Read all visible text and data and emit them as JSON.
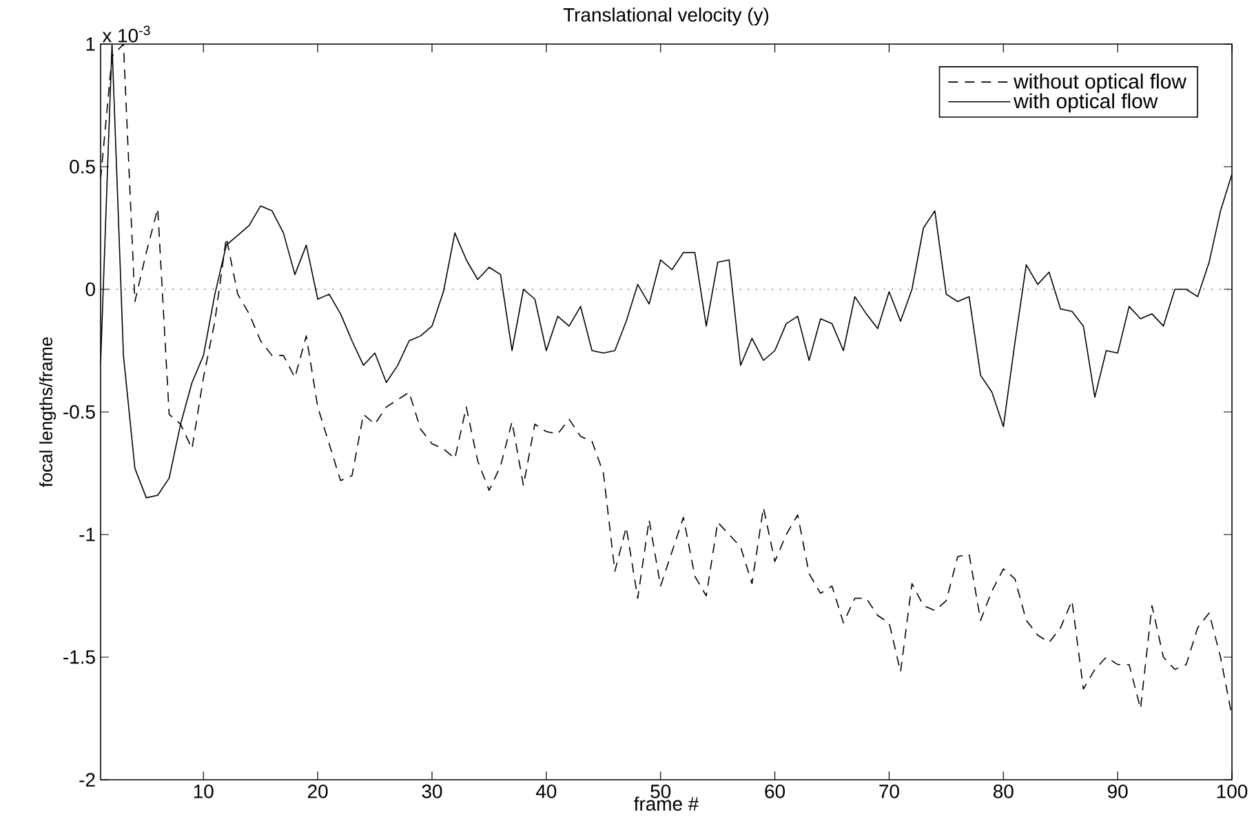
{
  "chart_data": {
    "type": "line",
    "title": "Translational velocity (y)",
    "xlabel": "frame #",
    "ylabel": "focal lengths/frame",
    "annotations": [
      "x 10$^{-3}$"
    ],
    "x": [
      1,
      2,
      3,
      4,
      5,
      6,
      7,
      8,
      9,
      10,
      11,
      12,
      13,
      14,
      15,
      16,
      17,
      18,
      19,
      20,
      21,
      22,
      23,
      24,
      25,
      26,
      27,
      28,
      29,
      30,
      31,
      32,
      33,
      34,
      35,
      36,
      37,
      38,
      39,
      40,
      41,
      42,
      43,
      44,
      45,
      46,
      47,
      48,
      49,
      50,
      51,
      52,
      53,
      54,
      55,
      56,
      57,
      58,
      59,
      60,
      61,
      62,
      63,
      64,
      65,
      66,
      67,
      68,
      69,
      70,
      71,
      72,
      73,
      74,
      75,
      76,
      77,
      78,
      79,
      80,
      81,
      82,
      83,
      84,
      85,
      86,
      87,
      88,
      89,
      90,
      91,
      92,
      93,
      94,
      95,
      96,
      97,
      98,
      99,
      100
    ],
    "series": [
      {
        "name": "without optical flow",
        "color": "#000000",
        "line_style": "dashed",
        "values": [
          0.45,
          0.95,
          1.0,
          -0.05,
          0.15,
          0.33,
          -0.51,
          -0.55,
          -0.65,
          -0.36,
          -0.13,
          0.21,
          -0.02,
          -0.1,
          -0.21,
          -0.27,
          -0.27,
          -0.36,
          -0.19,
          -0.48,
          -0.63,
          -0.78,
          -0.76,
          -0.51,
          -0.55,
          -0.48,
          -0.45,
          -0.42,
          -0.57,
          -0.63,
          -0.65,
          -0.69,
          -0.48,
          -0.7,
          -0.82,
          -0.72,
          -0.54,
          -0.8,
          -0.55,
          -0.58,
          -0.59,
          -0.53,
          -0.6,
          -0.62,
          -0.75,
          -1.15,
          -0.97,
          -1.26,
          -0.94,
          -1.21,
          -1.07,
          -0.93,
          -1.17,
          -1.25,
          -0.95,
          -1.0,
          -1.05,
          -1.2,
          -0.89,
          -1.11,
          -1.0,
          -0.92,
          -1.16,
          -1.24,
          -1.21,
          -1.36,
          -1.26,
          -1.26,
          -1.33,
          -1.36,
          -1.56,
          -1.2,
          -1.29,
          -1.31,
          -1.27,
          -1.09,
          -1.08,
          -1.35,
          -1.23,
          -1.14,
          -1.18,
          -1.35,
          -1.41,
          -1.44,
          -1.38,
          -1.27,
          -1.63,
          -1.55,
          -1.5,
          -1.53,
          -1.53,
          -1.71,
          -1.29,
          -1.5,
          -1.55,
          -1.53,
          -1.38,
          -1.32,
          -1.5,
          -1.74
        ]
      },
      {
        "name": "with optical flow",
        "color": "#000000",
        "line_style": "solid",
        "values": [
          -0.3,
          1.0,
          -0.27,
          -0.73,
          -0.85,
          -0.84,
          -0.77,
          -0.55,
          -0.38,
          -0.27,
          -0.02,
          0.18,
          0.22,
          0.26,
          0.34,
          0.32,
          0.23,
          0.06,
          0.18,
          -0.04,
          -0.02,
          -0.1,
          -0.21,
          -0.31,
          -0.26,
          -0.38,
          -0.31,
          -0.21,
          -0.19,
          -0.15,
          -0.01,
          0.23,
          0.12,
          0.04,
          0.09,
          0.06,
          -0.25,
          0.0,
          -0.04,
          -0.25,
          -0.11,
          -0.15,
          -0.07,
          -0.25,
          -0.26,
          -0.25,
          -0.13,
          0.02,
          -0.06,
          0.12,
          0.08,
          0.15,
          0.15,
          -0.15,
          0.11,
          0.12,
          -0.31,
          -0.2,
          -0.29,
          -0.25,
          -0.14,
          -0.11,
          -0.29,
          -0.12,
          -0.14,
          -0.25,
          -0.03,
          -0.1,
          -0.16,
          -0.01,
          -0.13,
          0.0,
          0.25,
          0.32,
          -0.02,
          -0.05,
          -0.03,
          -0.35,
          -0.42,
          -0.56,
          -0.22,
          0.1,
          0.02,
          0.07,
          -0.08,
          -0.09,
          -0.15,
          -0.44,
          -0.25,
          -0.26,
          -0.07,
          -0.12,
          -0.1,
          -0.15,
          0.0,
          0.0,
          -0.03,
          0.11,
          0.32,
          0.47
        ]
      }
    ],
    "xlim": [
      1,
      100
    ],
    "xticks": [
      10,
      20,
      30,
      40,
      50,
      60,
      70,
      80,
      90,
      100
    ],
    "ylim": [
      -2,
      1
    ],
    "yticks": [
      -2,
      -1.5,
      -1,
      -0.5,
      0,
      0.5,
      1
    ],
    "ref_lines": [
      {
        "axis": "y",
        "value": 0,
        "color": "#000000",
        "line_style": "dotted"
      }
    ],
    "grid": false,
    "legend": "top right"
  }
}
